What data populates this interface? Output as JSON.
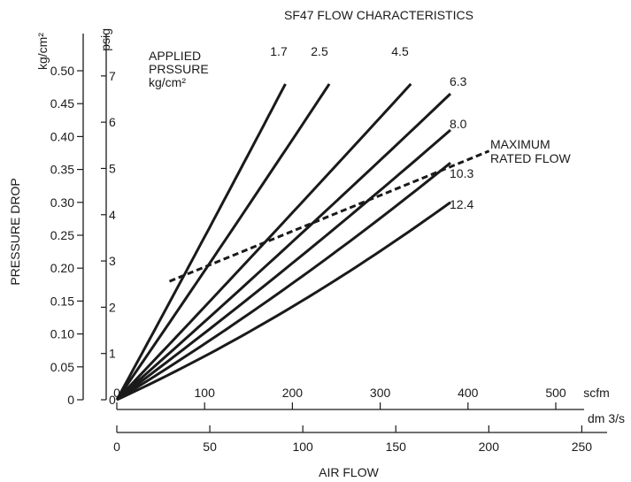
{
  "chart_data": {
    "type": "line",
    "title": "SF47 FLOW CHARACTERISTICS",
    "xlabel": "AIR FLOW",
    "ylabel": "PRESSURE DROP",
    "x_unit_primary": "scfm",
    "x_unit_secondary": "dm 3/s",
    "y_unit_primary": "kg/cm²",
    "y_unit_secondary": "psig",
    "xlim": [
      0,
      550
    ],
    "ylim": [
      0,
      0.55
    ],
    "x_ticks_scfm": [
      "0",
      "100",
      "200",
      "300",
      "400",
      "500"
    ],
    "x_ticks_dm3s": [
      "0",
      "50",
      "100",
      "150",
      "200",
      "250"
    ],
    "y_ticks_kg": [
      "0",
      "0.05",
      "0.10",
      "0.15",
      "0.20",
      "0.25",
      "0.30",
      "0.35",
      "0.40",
      "0.45",
      "0.50"
    ],
    "y_ticks_psig": [
      "0",
      "1",
      "2",
      "3",
      "4",
      "5",
      "6",
      "7"
    ],
    "legend_title_lines": [
      "APPLIED",
      "PRSSURE",
      "kg/cm²"
    ],
    "series": [
      {
        "name": "1.7",
        "x": [
          0,
          192
        ],
        "y": [
          0,
          0.48
        ],
        "curvature": 0.02
      },
      {
        "name": "2.5",
        "x": [
          0,
          242
        ],
        "y": [
          0,
          0.48
        ],
        "curvature": 0.02
      },
      {
        "name": "4.5",
        "x": [
          0,
          335
        ],
        "y": [
          0,
          0.48
        ],
        "curvature": 0.02
      },
      {
        "name": "6.3",
        "x": [
          0,
          380
        ],
        "y": [
          0,
          0.465
        ],
        "curvature": 0.04
      },
      {
        "name": "8.0",
        "x": [
          0,
          380
        ],
        "y": [
          0,
          0.41
        ],
        "curvature": 0.08
      },
      {
        "name": "10.3",
        "x": [
          0,
          380
        ],
        "y": [
          0,
          0.36
        ],
        "curvature": 0.14
      },
      {
        "name": "12.4",
        "x": [
          0,
          380
        ],
        "y": [
          0,
          0.3
        ],
        "curvature": 0.22
      }
    ],
    "max_rated_flow": {
      "label_lines": [
        "MAXIMUM",
        "RATED FLOW"
      ],
      "x": [
        60,
        424
      ],
      "y": [
        0.18,
        0.378
      ],
      "style": "dashed"
    },
    "grid": false
  }
}
